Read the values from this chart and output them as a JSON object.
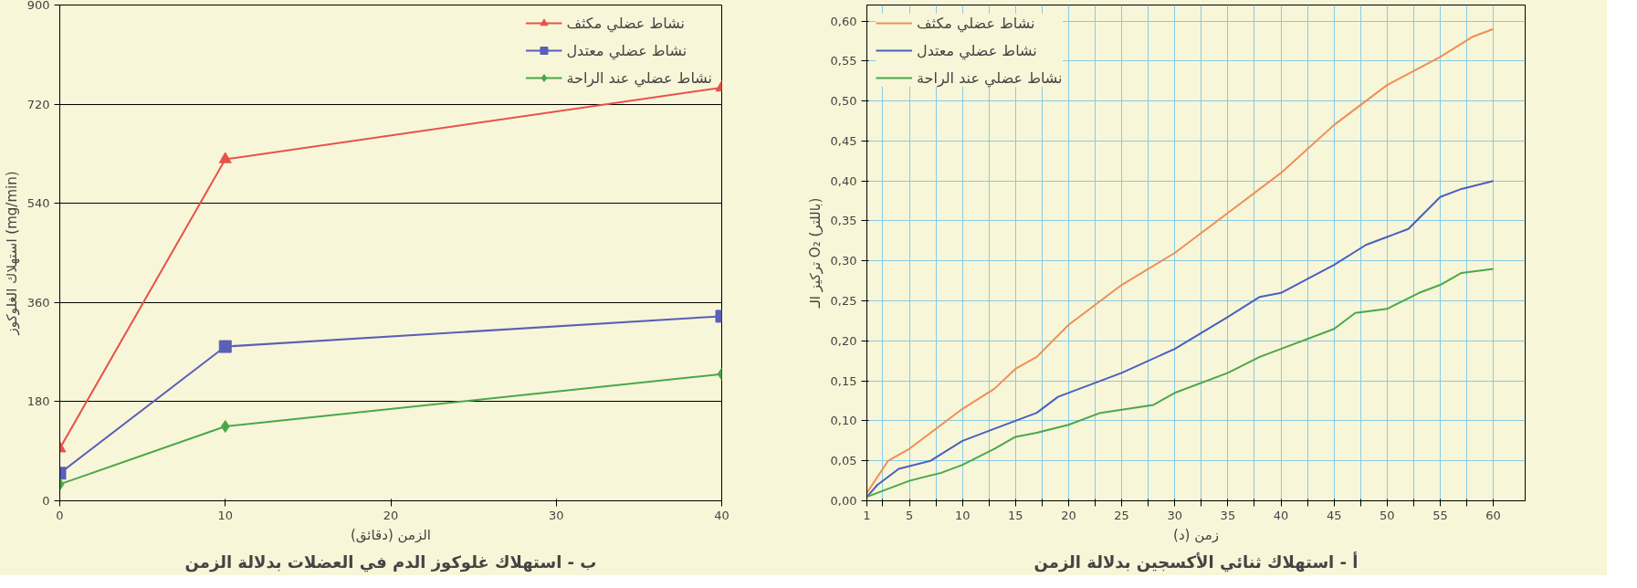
{
  "chart_data": [
    {
      "type": "line",
      "title": "أ - استهلاك ثنائي الأكسجين بدلالة الزمن",
      "xlabel": "زمن (د)",
      "ylabel": "تركيز الـ O₂ (باللتر)",
      "xlim": [
        1,
        63
      ],
      "ylim": [
        0,
        0.62
      ],
      "xticks": [
        1,
        {
          "value": 2.5,
          "label": null
        },
        5,
        {
          "value": 7.5,
          "label": null
        },
        10,
        {
          "value": 12.5,
          "label": null
        },
        15,
        {
          "value": 17.5,
          "label": null
        },
        20,
        {
          "value": 22.5,
          "label": null
        },
        25,
        {
          "value": 27.5,
          "label": null
        },
        30,
        {
          "value": 32.5,
          "label": null
        },
        35,
        {
          "value": 37.5,
          "label": null
        },
        40,
        {
          "value": 42.5,
          "label": null
        },
        45,
        {
          "value": 47.5,
          "label": null
        },
        50,
        {
          "value": 52.5,
          "label": null
        },
        55,
        {
          "value": 57.5,
          "label": null
        },
        60
      ],
      "yticks": [
        {
          "value": 0,
          "label": "0,00"
        },
        {
          "value": 0.05,
          "label": "0,05"
        },
        {
          "value": 0.1,
          "label": "0,10"
        },
        {
          "value": 0.15,
          "label": "0,15"
        },
        {
          "value": 0.2,
          "label": "0,20"
        },
        {
          "value": 0.25,
          "label": "0,25"
        },
        {
          "value": 0.3,
          "label": "0,30"
        },
        {
          "value": 0.35,
          "label": "0,35"
        },
        {
          "value": 0.4,
          "label": "0,40"
        },
        {
          "value": 0.45,
          "label": "0,45"
        },
        {
          "value": 0.5,
          "label": "0,50"
        },
        {
          "value": 0.55,
          "label": "0,55"
        },
        {
          "value": 0.6,
          "label": "0,60"
        }
      ],
      "grid": true,
      "legend": "top left",
      "marker": "none",
      "line_style": "solid",
      "series": [
        {
          "name": "نشاط عضلي مكثف",
          "color": "#ee8f55",
          "x": [
            1,
            3,
            5,
            10,
            13,
            15,
            17,
            20,
            22,
            25,
            30,
            32,
            35,
            40,
            45,
            48,
            50,
            55,
            58,
            60
          ],
          "values": [
            0.01,
            0.05,
            0.065,
            0.115,
            0.14,
            0.165,
            0.18,
            0.22,
            0.24,
            0.27,
            0.31,
            0.33,
            0.36,
            0.41,
            0.47,
            0.5,
            0.52,
            0.555,
            0.58,
            0.59
          ]
        },
        {
          "name": "نشاط عضلي معتدل",
          "color": "#4a5fc0",
          "x": [
            1,
            2,
            4,
            7,
            10,
            13,
            15,
            17,
            19,
            25,
            30,
            35,
            38,
            40,
            45,
            48,
            50,
            52,
            55,
            57,
            60
          ],
          "values": [
            0.005,
            0.02,
            0.04,
            0.05,
            0.075,
            0.09,
            0.1,
            0.11,
            0.13,
            0.16,
            0.19,
            0.23,
            0.255,
            0.26,
            0.295,
            0.32,
            0.33,
            0.34,
            0.38,
            0.39,
            0.4
          ]
        },
        {
          "name": "نشاط عضلي عند الراحة",
          "color": "#4aa84a",
          "x": [
            1,
            3,
            5,
            8,
            10,
            13,
            15,
            17,
            20,
            23,
            28,
            30,
            35,
            38,
            40,
            45,
            47,
            50,
            53,
            55,
            57,
            60
          ],
          "values": [
            0.005,
            0.015,
            0.025,
            0.035,
            0.045,
            0.065,
            0.08,
            0.085,
            0.095,
            0.11,
            0.12,
            0.135,
            0.16,
            0.18,
            0.19,
            0.215,
            0.235,
            0.24,
            0.26,
            0.27,
            0.285,
            0.29
          ]
        }
      ]
    },
    {
      "type": "line",
      "title": "ب - استهلاك غلوكوز الدم في العضلات بدلالة الزمن",
      "xlabel": "الزمن (دقائق)",
      "ylabel": "استهلاك الغلوكوز (mg/min)",
      "xlim": [
        0,
        40
      ],
      "ylim": [
        0,
        900
      ],
      "xticks": [
        0,
        10,
        20,
        30,
        40
      ],
      "yticks": [
        0,
        180,
        360,
        540,
        720,
        900
      ],
      "grid": "y",
      "legend": "top right",
      "line_style": "solid",
      "series": [
        {
          "name": "نشاط عضلي مكثف",
          "color": "#e8524a",
          "marker": "triangle",
          "x": [
            0,
            10,
            40
          ],
          "values": [
            95,
            620,
            750
          ]
        },
        {
          "name": "نشاط عضلي معتدل",
          "color": "#5a5fb8",
          "marker": "square",
          "x": [
            0,
            10,
            40
          ],
          "values": [
            50,
            280,
            335
          ]
        },
        {
          "name": "نشاط عضلي عند الراحة",
          "color": "#4aa84a",
          "marker": "diamond",
          "x": [
            0,
            10,
            40
          ],
          "values": [
            30,
            135,
            230
          ]
        }
      ]
    }
  ]
}
